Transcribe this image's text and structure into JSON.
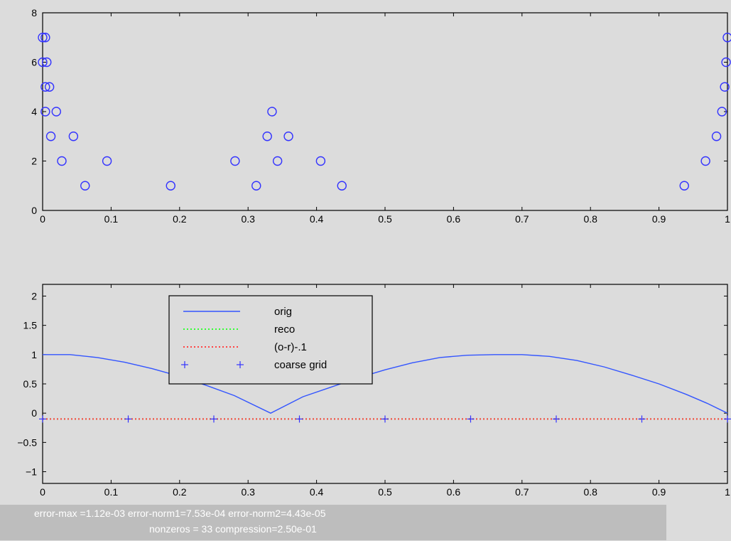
{
  "chart_data": [
    {
      "type": "scatter",
      "xlim": [
        0,
        1
      ],
      "ylim": [
        0,
        8
      ],
      "xticks": [
        "0",
        "0.1",
        "0.2",
        "0.3",
        "0.4",
        "0.5",
        "0.6",
        "0.7",
        "0.8",
        "0.9",
        "1"
      ],
      "yticks": [
        "0",
        "2",
        "4",
        "6",
        "8"
      ],
      "marker": "circle",
      "color": "#3333ff",
      "series": [
        {
          "points": [
            [
              0.0,
              7
            ],
            [
              0.004,
              7
            ],
            [
              0.0,
              6
            ],
            [
              0.006,
              6
            ],
            [
              0.004,
              5
            ],
            [
              0.01,
              5
            ],
            [
              0.004,
              4
            ],
            [
              0.02,
              4
            ],
            [
              0.012,
              3
            ],
            [
              0.045,
              3
            ],
            [
              0.028,
              2
            ],
            [
              0.094,
              2
            ],
            [
              0.062,
              1
            ],
            [
              0.187,
              1
            ],
            [
              0.281,
              2
            ],
            [
              0.312,
              1
            ],
            [
              0.328,
              3
            ],
            [
              0.335,
              4
            ],
            [
              0.343,
              2
            ],
            [
              0.359,
              3
            ],
            [
              0.406,
              2
            ],
            [
              0.437,
              1
            ],
            [
              0.937,
              1
            ],
            [
              0.968,
              2
            ],
            [
              0.984,
              3
            ],
            [
              0.992,
              4
            ],
            [
              0.996,
              5
            ],
            [
              0.998,
              6
            ],
            [
              1.0,
              7
            ]
          ]
        }
      ]
    },
    {
      "type": "line",
      "xlim": [
        0,
        1
      ],
      "ylim": [
        -1.2,
        2.2
      ],
      "xticks": [
        "0",
        "0.1",
        "0.2",
        "0.3",
        "0.4",
        "0.5",
        "0.6",
        "0.7",
        "0.8",
        "0.9",
        "1"
      ],
      "yticks": [
        "-1",
        "-0.5",
        "0",
        "0.5",
        "1",
        "1.5",
        "2"
      ],
      "legend_position": "top-left-inside",
      "series": [
        {
          "name": "orig",
          "color": "#3355ff",
          "style": "solid",
          "x": [
            0,
            0.04,
            0.08,
            0.12,
            0.16,
            0.2,
            0.24,
            0.28,
            0.333,
            0.38,
            0.42,
            0.46,
            0.5,
            0.54,
            0.58,
            0.62,
            0.66,
            0.7,
            0.74,
            0.78,
            0.82,
            0.86,
            0.9,
            0.94,
            0.97,
            1.0
          ],
          "y": [
            1.0,
            1.0,
            0.95,
            0.87,
            0.76,
            0.63,
            0.47,
            0.3,
            0.0,
            0.28,
            0.44,
            0.6,
            0.74,
            0.86,
            0.95,
            0.99,
            1.0,
            1.0,
            0.97,
            0.9,
            0.79,
            0.65,
            0.5,
            0.32,
            0.17,
            0.0
          ]
        },
        {
          "name": "reco",
          "color": "#33ff33",
          "style": "dotted",
          "x": [
            0,
            1
          ],
          "y": [
            -0.1,
            -0.1
          ]
        },
        {
          "name": "(o-r)-.1",
          "color": "#ff4444",
          "style": "dotted",
          "x": [
            0,
            1
          ],
          "y": [
            -0.1,
            -0.1
          ]
        },
        {
          "name": "coarse grid",
          "color": "#3333ff",
          "style": "plus",
          "x": [
            0,
            0.125,
            0.25,
            0.375,
            0.5,
            0.625,
            0.75,
            0.875,
            1.0
          ],
          "y": [
            -0.1,
            -0.1,
            -0.1,
            -0.1,
            -0.1,
            -0.1,
            -0.1,
            -0.1,
            -0.1
          ]
        }
      ]
    }
  ],
  "status": {
    "line1": "error-max =1.12e-03  error-norm1=7.53e-04  error-norm2=4.43e-05",
    "line2": "nonzeros  = 33  compression=2.50e-01"
  }
}
